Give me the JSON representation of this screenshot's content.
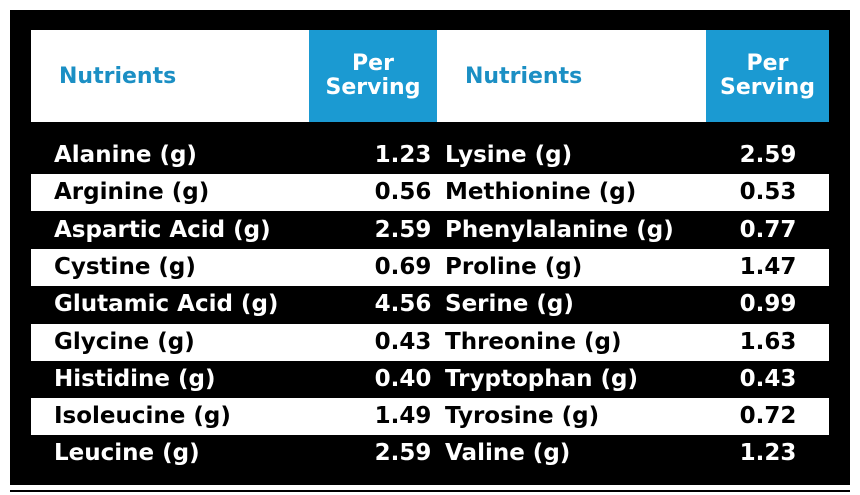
{
  "table": {
    "header": [
      "Nutrients",
      "Per Serving",
      "Nutrients",
      "Per Serving"
    ],
    "rows": [
      [
        "Alanine (g)",
        "1.23",
        "Lysine (g)",
        "2.59"
      ],
      [
        "Arginine (g)",
        "0.56",
        "Methionine (g)",
        "0.53"
      ],
      [
        "Aspartic Acid (g)",
        "2.59",
        "Phenylalanine (g)",
        "0.77"
      ],
      [
        "Cystine (g)",
        "0.69",
        "Proline (g)",
        "1.47"
      ],
      [
        "Glutamic Acid (g)",
        "4.56",
        "Serine (g)",
        "0.99"
      ],
      [
        "Glycine (g)",
        "0.43",
        "Threonine (g)",
        "1.63"
      ],
      [
        "Histidine (g)",
        "0.40",
        "Tryptophan (g)",
        "0.43"
      ],
      [
        "Isoleucine (g)",
        "1.49",
        "Tyrosine (g)",
        "0.72"
      ],
      [
        "Leucine (g)",
        "2.59",
        "Valine (g)",
        "1.23"
      ]
    ]
  }
}
